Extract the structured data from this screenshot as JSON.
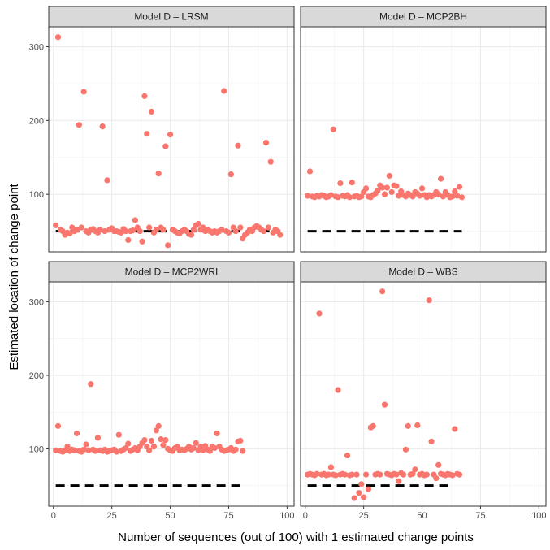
{
  "chart_data": {
    "type": "scatter",
    "xlabel": "Number of sequences (out of 100) with 1 estimated change points",
    "ylabel": "Estimated location of change point",
    "xlim": [
      -2,
      103
    ],
    "ylim": [
      22,
      327
    ],
    "x_ticks": [
      "0",
      "25",
      "50",
      "75",
      "100"
    ],
    "x_tick_values": [
      0,
      25,
      50,
      75,
      100
    ],
    "y_ticks": [
      "100",
      "200",
      "300"
    ],
    "y_tick_values": [
      100,
      200,
      300
    ],
    "grid": true,
    "facet_layout": "2x2",
    "point_color": "#F8766D",
    "reference_line_color": "#000000",
    "panels": [
      {
        "title": "Model D – LRSM",
        "reference_line": {
          "y": 50,
          "x_start": 1,
          "x_end": 97
        },
        "points": [
          [
            1,
            58
          ],
          [
            2,
            313
          ],
          [
            3,
            52
          ],
          [
            4,
            50
          ],
          [
            5,
            45
          ],
          [
            6,
            48
          ],
          [
            7,
            47
          ],
          [
            8,
            55
          ],
          [
            9,
            50
          ],
          [
            10,
            52
          ],
          [
            11,
            194
          ],
          [
            12,
            55
          ],
          [
            13,
            239
          ],
          [
            14,
            50
          ],
          [
            15,
            48
          ],
          [
            16,
            52
          ],
          [
            17,
            53
          ],
          [
            18,
            50
          ],
          [
            19,
            48
          ],
          [
            20,
            52
          ],
          [
            21,
            192
          ],
          [
            22,
            50
          ],
          [
            23,
            119
          ],
          [
            24,
            52
          ],
          [
            25,
            54
          ],
          [
            26,
            50
          ],
          [
            27,
            50
          ],
          [
            28,
            49
          ],
          [
            29,
            48
          ],
          [
            30,
            53
          ],
          [
            31,
            50
          ],
          [
            32,
            38
          ],
          [
            33,
            50
          ],
          [
            34,
            51
          ],
          [
            35,
            65
          ],
          [
            36,
            55
          ],
          [
            37,
            50
          ],
          [
            38,
            36
          ],
          [
            39,
            233
          ],
          [
            40,
            182
          ],
          [
            41,
            55
          ],
          [
            42,
            212
          ],
          [
            43,
            48
          ],
          [
            44,
            52
          ],
          [
            45,
            128
          ],
          [
            46,
            55
          ],
          [
            47,
            52
          ],
          [
            48,
            165
          ],
          [
            49,
            31
          ],
          [
            50,
            181
          ],
          [
            51,
            52
          ],
          [
            52,
            50
          ],
          [
            53,
            48
          ],
          [
            54,
            47
          ],
          [
            55,
            50
          ],
          [
            56,
            52
          ],
          [
            57,
            50
          ],
          [
            58,
            46
          ],
          [
            59,
            45
          ],
          [
            60,
            52
          ],
          [
            61,
            58
          ],
          [
            62,
            60
          ],
          [
            63,
            52
          ],
          [
            64,
            55
          ],
          [
            65,
            50
          ],
          [
            66,
            52
          ],
          [
            67,
            50
          ],
          [
            68,
            48
          ],
          [
            69,
            50
          ],
          [
            70,
            48
          ],
          [
            71,
            50
          ],
          [
            72,
            52
          ],
          [
            73,
            240
          ],
          [
            74,
            50
          ],
          [
            75,
            48
          ],
          [
            76,
            127
          ],
          [
            77,
            55
          ],
          [
            78,
            50
          ],
          [
            79,
            166
          ],
          [
            80,
            55
          ],
          [
            81,
            40
          ],
          [
            82,
            45
          ],
          [
            83,
            48
          ],
          [
            84,
            52
          ],
          [
            85,
            50
          ],
          [
            86,
            55
          ],
          [
            87,
            57
          ],
          [
            88,
            55
          ],
          [
            89,
            52
          ],
          [
            90,
            50
          ],
          [
            91,
            170
          ],
          [
            92,
            55
          ],
          [
            93,
            144
          ],
          [
            94,
            48
          ],
          [
            95,
            52
          ],
          [
            96,
            50
          ],
          [
            97,
            45
          ]
        ]
      },
      {
        "title": "Model D – MCP2BH",
        "reference_line": {
          "y": 50,
          "x_start": 1,
          "x_end": 67
        },
        "points": [
          [
            1,
            98
          ],
          [
            2,
            131
          ],
          [
            3,
            97
          ],
          [
            4,
            96
          ],
          [
            5,
            98
          ],
          [
            6,
            97
          ],
          [
            7,
            99
          ],
          [
            8,
            98
          ],
          [
            9,
            96
          ],
          [
            10,
            97
          ],
          [
            11,
            99
          ],
          [
            12,
            188
          ],
          [
            13,
            97
          ],
          [
            14,
            96
          ],
          [
            15,
            115
          ],
          [
            16,
            98
          ],
          [
            17,
            97
          ],
          [
            18,
            99
          ],
          [
            19,
            96
          ],
          [
            20,
            116
          ],
          [
            21,
            97
          ],
          [
            22,
            98
          ],
          [
            23,
            96
          ],
          [
            24,
            97
          ],
          [
            25,
            103
          ],
          [
            26,
            108
          ],
          [
            27,
            97
          ],
          [
            28,
            96
          ],
          [
            29,
            99
          ],
          [
            30,
            101
          ],
          [
            31,
            105
          ],
          [
            32,
            112
          ],
          [
            33,
            109
          ],
          [
            34,
            100
          ],
          [
            35,
            109
          ],
          [
            36,
            125
          ],
          [
            37,
            103
          ],
          [
            38,
            112
          ],
          [
            39,
            111
          ],
          [
            40,
            98
          ],
          [
            41,
            104
          ],
          [
            42,
            99
          ],
          [
            43,
            97
          ],
          [
            44,
            101
          ],
          [
            45,
            99
          ],
          [
            46,
            97
          ],
          [
            47,
            103
          ],
          [
            48,
            101
          ],
          [
            49,
            98
          ],
          [
            50,
            108
          ],
          [
            51,
            99
          ],
          [
            52,
            96
          ],
          [
            53,
            99
          ],
          [
            54,
            97
          ],
          [
            55,
            99
          ],
          [
            56,
            103
          ],
          [
            57,
            100
          ],
          [
            58,
            121
          ],
          [
            59,
            97
          ],
          [
            60,
            103
          ],
          [
            61,
            99
          ],
          [
            62,
            96
          ],
          [
            63,
            97
          ],
          [
            64,
            104
          ],
          [
            65,
            98
          ],
          [
            66,
            110
          ],
          [
            67,
            96
          ]
        ]
      },
      {
        "title": "Model D – MCP2WRI",
        "reference_line": {
          "y": 50,
          "x_start": 1,
          "x_end": 81
        },
        "points": [
          [
            1,
            98
          ],
          [
            2,
            131
          ],
          [
            3,
            97
          ],
          [
            4,
            96
          ],
          [
            5,
            98
          ],
          [
            6,
            103
          ],
          [
            7,
            97
          ],
          [
            8,
            99
          ],
          [
            9,
            98
          ],
          [
            10,
            121
          ],
          [
            11,
            97
          ],
          [
            12,
            96
          ],
          [
            13,
            99
          ],
          [
            14,
            106
          ],
          [
            15,
            98
          ],
          [
            16,
            188
          ],
          [
            17,
            99
          ],
          [
            18,
            97
          ],
          [
            19,
            115
          ],
          [
            20,
            98
          ],
          [
            21,
            97
          ],
          [
            22,
            99
          ],
          [
            23,
            96
          ],
          [
            24,
            97
          ],
          [
            25,
            98
          ],
          [
            26,
            99
          ],
          [
            27,
            96
          ],
          [
            28,
            119
          ],
          [
            29,
            97
          ],
          [
            30,
            99
          ],
          [
            31,
            101
          ],
          [
            32,
            107
          ],
          [
            33,
            97
          ],
          [
            34,
            99
          ],
          [
            35,
            101
          ],
          [
            36,
            98
          ],
          [
            37,
            103
          ],
          [
            38,
            108
          ],
          [
            39,
            112
          ],
          [
            40,
            103
          ],
          [
            41,
            98
          ],
          [
            42,
            111
          ],
          [
            43,
            103
          ],
          [
            44,
            125
          ],
          [
            45,
            131
          ],
          [
            46,
            113
          ],
          [
            47,
            105
          ],
          [
            48,
            112
          ],
          [
            49,
            100
          ],
          [
            50,
            98
          ],
          [
            51,
            97
          ],
          [
            52,
            101
          ],
          [
            53,
            103
          ],
          [
            54,
            98
          ],
          [
            55,
            99
          ],
          [
            56,
            98
          ],
          [
            57,
            100
          ],
          [
            58,
            103
          ],
          [
            59,
            99
          ],
          [
            60,
            101
          ],
          [
            61,
            108
          ],
          [
            62,
            98
          ],
          [
            63,
            103
          ],
          [
            64,
            98
          ],
          [
            65,
            104
          ],
          [
            66,
            99
          ],
          [
            67,
            97
          ],
          [
            68,
            103
          ],
          [
            69,
            101
          ],
          [
            70,
            121
          ],
          [
            71,
            103
          ],
          [
            72,
            99
          ],
          [
            73,
            97
          ],
          [
            74,
            98
          ],
          [
            75,
            99
          ],
          [
            76,
            101
          ],
          [
            77,
            97
          ],
          [
            78,
            99
          ],
          [
            79,
            110
          ],
          [
            80,
            111
          ],
          [
            81,
            97
          ]
        ]
      },
      {
        "title": "Model D – WBS",
        "reference_line": {
          "y": 50,
          "x_start": 1,
          "x_end": 61
        },
        "points": [
          [
            1,
            65
          ],
          [
            2,
            66
          ],
          [
            3,
            65
          ],
          [
            4,
            64
          ],
          [
            5,
            66
          ],
          [
            6,
            284
          ],
          [
            7,
            65
          ],
          [
            8,
            66
          ],
          [
            9,
            64
          ],
          [
            10,
            65
          ],
          [
            11,
            75
          ],
          [
            12,
            65
          ],
          [
            13,
            64
          ],
          [
            14,
            180
          ],
          [
            15,
            65
          ],
          [
            16,
            66
          ],
          [
            17,
            65
          ],
          [
            18,
            91
          ],
          [
            19,
            64
          ],
          [
            20,
            65
          ],
          [
            21,
            33
          ],
          [
            22,
            65
          ],
          [
            23,
            40
          ],
          [
            24,
            52
          ],
          [
            25,
            34
          ],
          [
            26,
            65
          ],
          [
            27,
            45
          ],
          [
            28,
            129
          ],
          [
            29,
            131
          ],
          [
            30,
            65
          ],
          [
            31,
            66
          ],
          [
            32,
            65
          ],
          [
            33,
            314
          ],
          [
            34,
            160
          ],
          [
            35,
            66
          ],
          [
            36,
            65
          ],
          [
            37,
            64
          ],
          [
            38,
            66
          ],
          [
            39,
            65
          ],
          [
            40,
            56
          ],
          [
            41,
            67
          ],
          [
            42,
            65
          ],
          [
            43,
            99
          ],
          [
            44,
            131
          ],
          [
            45,
            65
          ],
          [
            46,
            66
          ],
          [
            47,
            72
          ],
          [
            48,
            132
          ],
          [
            49,
            65
          ],
          [
            50,
            66
          ],
          [
            51,
            64
          ],
          [
            52,
            65
          ],
          [
            53,
            302
          ],
          [
            54,
            110
          ],
          [
            55,
            65
          ],
          [
            56,
            60
          ],
          [
            57,
            78
          ],
          [
            58,
            66
          ],
          [
            59,
            65
          ],
          [
            60,
            64
          ],
          [
            61,
            66
          ],
          [
            62,
            65
          ],
          [
            63,
            64
          ],
          [
            64,
            127
          ],
          [
            65,
            66
          ],
          [
            66,
            65
          ]
        ]
      }
    ]
  }
}
